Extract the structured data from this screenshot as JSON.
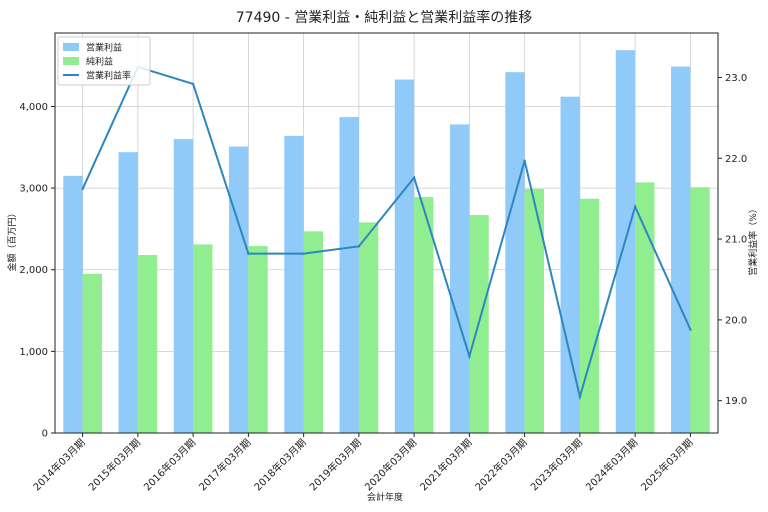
{
  "chart_data": {
    "type": "bar",
    "title": "77490 - 営業利益・純利益と営業利益率の推移",
    "xlabel": "会計年度",
    "ylabel": "金額（百万円）",
    "y2label": "営業利益率（%）",
    "categories": [
      "2014年03月期",
      "2015年03月期",
      "2016年03月期",
      "2017年03月期",
      "2018年03月期",
      "2019年03月期",
      "2020年03月期",
      "2021年03月期",
      "2022年03月期",
      "2023年03月期",
      "2024年03月期",
      "2025年03月期"
    ],
    "ylim": [
      0,
      4900
    ],
    "yticks": [
      "0",
      "1,000",
      "2,000",
      "3,000",
      "4,000"
    ],
    "y2lim": [
      18.6,
      23.55
    ],
    "y2ticks": [
      "19.0",
      "20.0",
      "21.0",
      "22.0",
      "23.0"
    ],
    "grid": true,
    "legend_position": "top-left",
    "series": [
      {
        "name": "営業利益",
        "kind": "bar",
        "color": "#90caf9",
        "values": [
          3150,
          3440,
          3600,
          3510,
          3640,
          3870,
          4330,
          3780,
          4420,
          4120,
          4690,
          4490
        ]
      },
      {
        "name": "純利益",
        "kind": "bar",
        "color": "#90ee90",
        "values": [
          1950,
          2180,
          2310,
          2290,
          2470,
          2580,
          2890,
          2670,
          2990,
          2870,
          3070,
          3010
        ]
      },
      {
        "name": "営業利益率",
        "kind": "line",
        "axis": "right",
        "color": "#2e86c1",
        "values": [
          21.62,
          23.13,
          22.92,
          20.82,
          20.82,
          20.91,
          21.76,
          19.55,
          21.97,
          19.05,
          21.4,
          19.88
        ]
      }
    ]
  }
}
